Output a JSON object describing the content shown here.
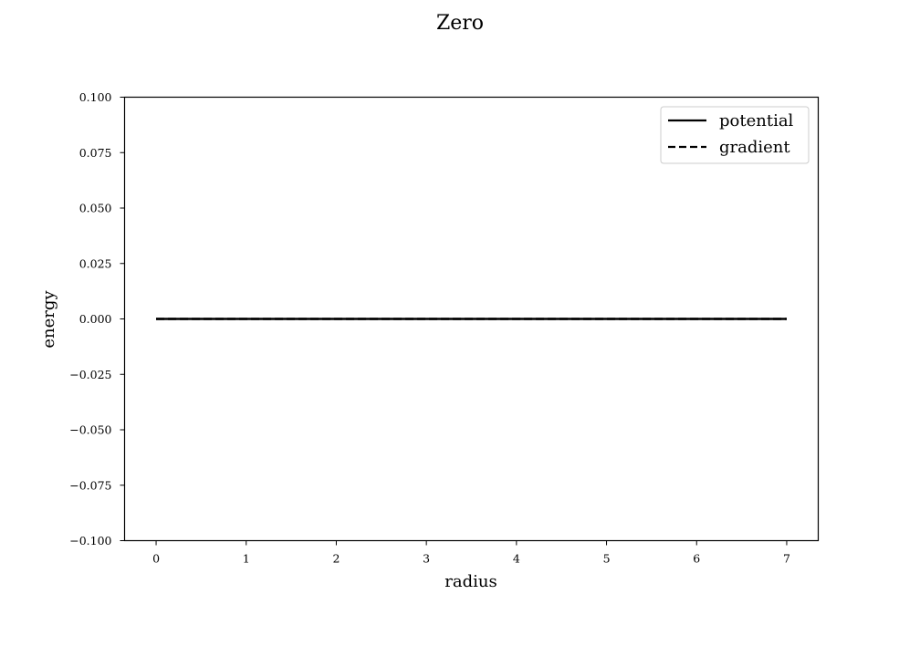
{
  "chart_data": {
    "type": "line",
    "title": "Zero",
    "xlabel": "radius",
    "ylabel": "energy",
    "xlim": [
      -0.35,
      7.35
    ],
    "ylim": [
      -0.1,
      0.1
    ],
    "x_ticks": [
      0,
      1,
      2,
      3,
      4,
      5,
      6,
      7
    ],
    "x_tick_labels": [
      "0",
      "1",
      "2",
      "3",
      "4",
      "5",
      "6",
      "7"
    ],
    "y_ticks": [
      -0.1,
      -0.075,
      -0.05,
      -0.025,
      0.0,
      0.025,
      0.05,
      0.075,
      0.1
    ],
    "y_tick_labels": [
      "−0.100",
      "−0.075",
      "−0.050",
      "−0.025",
      "0.000",
      "0.025",
      "0.050",
      "0.075",
      "0.100"
    ],
    "grid": false,
    "legend_position": "top-right",
    "series": [
      {
        "name": "potential",
        "style": "solid",
        "color": "#000000",
        "x": [
          0,
          7
        ],
        "y": [
          0,
          0
        ]
      },
      {
        "name": "gradient",
        "style": "dashed",
        "color": "#000000",
        "x": [
          0,
          7
        ],
        "y": [
          0,
          0
        ]
      }
    ]
  }
}
